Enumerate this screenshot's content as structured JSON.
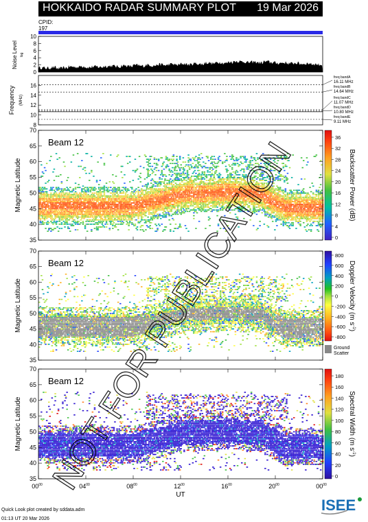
{
  "header": {
    "title": "HOKKAIDO RADAR SUMMARY PLOT",
    "date": "19 Mar 2026"
  },
  "cpid": {
    "label": "CPID:",
    "value": "197"
  },
  "footer": {
    "line1": "Quick Look plot created by sddata.adm",
    "line2": "01:13 UT 20 Mar 2026"
  },
  "logo": {
    "text": "ISEE"
  },
  "watermark": "NOT FOR PUBLICATION",
  "chart_data": [
    {
      "type": "bar",
      "name": "noise-level",
      "ylabel": "Noise Level",
      "ylabel2": "log",
      "ylim": [
        0,
        10
      ],
      "yticks": [
        0,
        2,
        4,
        6,
        8,
        10
      ],
      "x": "UT hours 0-24",
      "profile": [
        1.2,
        1.1,
        1.3,
        1.0,
        1.2,
        1.5,
        1.4,
        1.6,
        1.3,
        1.5,
        1.4,
        1.6,
        1.7,
        1.5,
        1.8,
        1.6,
        1.9,
        1.7,
        2.0,
        1.8,
        2.1,
        1.9,
        2.2,
        2.0,
        2.3,
        2.1,
        2.4,
        2.2,
        2.6,
        2.4,
        2.7,
        2.5,
        2.8,
        3.0,
        2.9,
        2.7,
        2.8,
        2.6,
        2.9,
        2.7,
        2.5,
        2.6,
        2.4,
        2.5,
        2.3,
        2.4,
        2.2,
        2.1
      ]
    },
    {
      "type": "line",
      "name": "frequency",
      "ylabel": "Frequency",
      "yunit": "MHz",
      "ylim": [
        8,
        18
      ],
      "yticks": [
        8,
        10,
        12,
        14,
        16
      ],
      "bands": [
        {
          "label": "freq bandA",
          "mhz": "16.11 MHz",
          "value": 16.11
        },
        {
          "label": "freq bandB",
          "mhz": "14.64 MHz",
          "value": 14.64
        },
        {
          "label": "freq bandC",
          "mhz": "11.07 MHz",
          "value": 11.07
        },
        {
          "label": "freq bandD",
          "mhz": "10.80 MHz",
          "value": 10.8
        },
        {
          "label": "freq bandE",
          "mhz": "9.11 MHz",
          "value": 9.11
        }
      ]
    },
    {
      "type": "heatmap",
      "name": "backscatter-power",
      "beam": "Beam 12",
      "ylabel": "Magnetic Latitude",
      "ylim": [
        35,
        70
      ],
      "yticks": [
        35,
        40,
        45,
        50,
        55,
        60,
        65,
        70
      ],
      "colorbar": {
        "label": "Backscatter Power (dB)",
        "ticks": [
          0,
          4,
          8,
          12,
          16,
          20,
          24,
          28,
          32,
          36
        ]
      }
    },
    {
      "type": "heatmap",
      "name": "doppler-velocity",
      "beam": "Beam 12",
      "ylabel": "Magnetic Latitude",
      "ylim": [
        35,
        70
      ],
      "yticks": [
        35,
        40,
        45,
        50,
        55,
        60,
        65,
        70
      ],
      "colorbar": {
        "label": "Doppler Velocity (m s",
        "label_sup": "-1",
        "label_end": ")",
        "ticks": [
          800,
          600,
          400,
          200,
          0,
          -200,
          -400,
          -600,
          -800
        ],
        "ground": "Ground",
        "scatter": "Scatter"
      }
    },
    {
      "type": "heatmap",
      "name": "spectral-width",
      "beam": "Beam 12",
      "ylabel": "Magnetic Latitude",
      "ylim": [
        35,
        70
      ],
      "yticks": [
        35,
        40,
        45,
        50,
        55,
        60,
        65,
        70
      ],
      "colorbar": {
        "label": "Spectral Width (m s",
        "label_sup": "-1",
        "label_end": ")",
        "ticks": [
          0,
          20,
          40,
          60,
          80,
          100,
          120,
          140,
          160,
          180
        ]
      }
    }
  ],
  "xaxis": {
    "label": "UT",
    "ticks": [
      "00",
      "04",
      "08",
      "12",
      "16",
      "20",
      "00"
    ],
    "sup": "00"
  }
}
